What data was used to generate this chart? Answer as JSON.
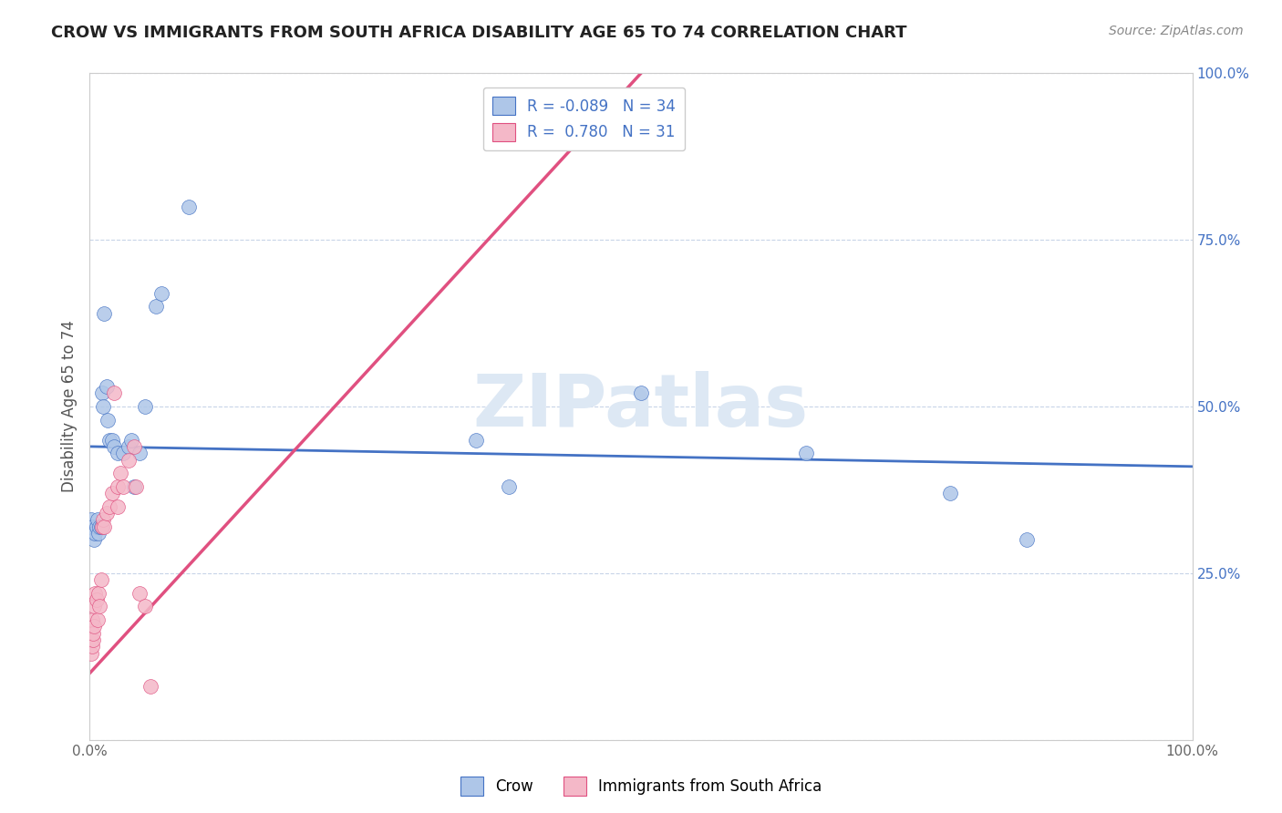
{
  "title": "CROW VS IMMIGRANTS FROM SOUTH AFRICA DISABILITY AGE 65 TO 74 CORRELATION CHART",
  "source": "Source: ZipAtlas.com",
  "ylabel": "Disability Age 65 to 74",
  "legend_crow": "Crow",
  "legend_imm": "Immigrants from South Africa",
  "r_crow": -0.089,
  "n_crow": 34,
  "r_imm": 0.78,
  "n_imm": 31,
  "crow_color": "#aec6e8",
  "imm_color": "#f4b8c8",
  "crow_line_color": "#4472c4",
  "imm_line_color": "#e05080",
  "watermark_color": "#dde8f4",
  "background_color": "#ffffff",
  "grid_color": "#c8d4e8",
  "crow_x": [
    0.001,
    0.002,
    0.003,
    0.004,
    0.005,
    0.006,
    0.007,
    0.008,
    0.009,
    0.01,
    0.011,
    0.012,
    0.013,
    0.015,
    0.016,
    0.018,
    0.02,
    0.022,
    0.025,
    0.03,
    0.035,
    0.038,
    0.04,
    0.045,
    0.05,
    0.06,
    0.065,
    0.09,
    0.35,
    0.38,
    0.5,
    0.65,
    0.78,
    0.85
  ],
  "crow_y": [
    0.33,
    0.32,
    0.31,
    0.3,
    0.31,
    0.32,
    0.33,
    0.31,
    0.32,
    0.32,
    0.52,
    0.5,
    0.64,
    0.53,
    0.48,
    0.45,
    0.45,
    0.44,
    0.43,
    0.43,
    0.44,
    0.45,
    0.38,
    0.43,
    0.5,
    0.65,
    0.67,
    0.8,
    0.45,
    0.38,
    0.52,
    0.43,
    0.37,
    0.3
  ],
  "imm_x": [
    0.001,
    0.001,
    0.002,
    0.002,
    0.003,
    0.003,
    0.004,
    0.004,
    0.005,
    0.006,
    0.007,
    0.008,
    0.009,
    0.01,
    0.011,
    0.012,
    0.013,
    0.015,
    0.018,
    0.02,
    0.022,
    0.025,
    0.025,
    0.028,
    0.03,
    0.035,
    0.04,
    0.042,
    0.045,
    0.05,
    0.055
  ],
  "imm_y": [
    0.13,
    0.15,
    0.14,
    0.18,
    0.15,
    0.16,
    0.17,
    0.2,
    0.22,
    0.21,
    0.18,
    0.22,
    0.2,
    0.24,
    0.32,
    0.33,
    0.32,
    0.34,
    0.35,
    0.37,
    0.52,
    0.35,
    0.38,
    0.4,
    0.38,
    0.42,
    0.44,
    0.38,
    0.22,
    0.2,
    0.08
  ],
  "xlim": [
    0.0,
    1.0
  ],
  "ylim": [
    0.0,
    1.0
  ],
  "ytick_values": [
    0.0,
    0.25,
    0.5,
    0.75,
    1.0
  ]
}
